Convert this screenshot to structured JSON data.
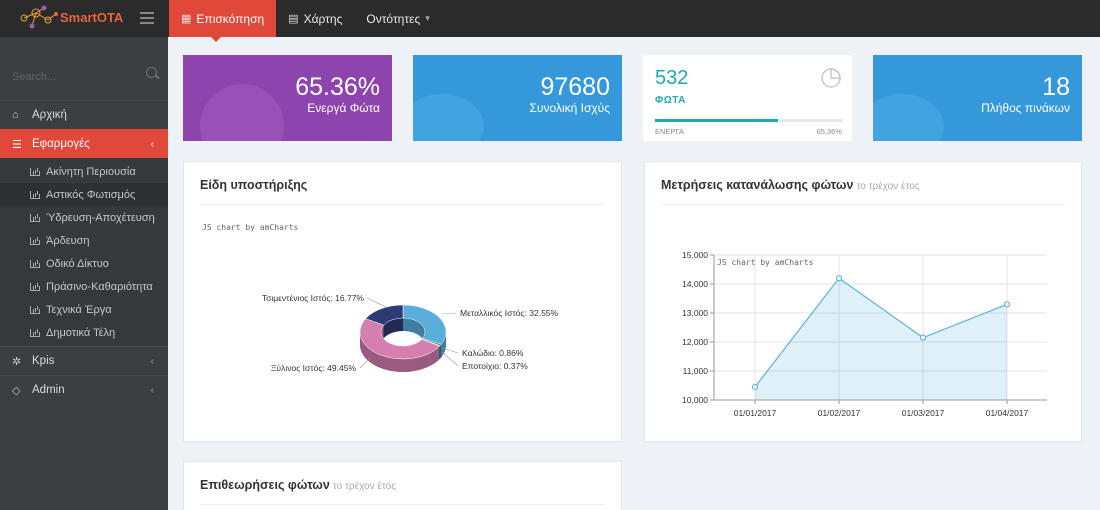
{
  "brand": {
    "name": "SmartOTA"
  },
  "topnav": {
    "items": [
      {
        "label": "Επισκόπηση",
        "icon": "dashboard-icon",
        "active": true
      },
      {
        "label": "Χάρτης",
        "icon": "map-icon"
      },
      {
        "label": "Οντότητες",
        "icon": "",
        "dropdown": true
      }
    ]
  },
  "sidebar": {
    "search_placeholder": "Search...",
    "items": [
      {
        "label": "Αρχική",
        "icon": "home-icon"
      },
      {
        "label": "Εφαρμογές",
        "icon": "database-icon",
        "active": true,
        "expanded": true
      },
      {
        "label": "Kpis",
        "icon": "gear-icon"
      },
      {
        "label": "Admin",
        "icon": "diamond-icon"
      }
    ],
    "subitems": [
      {
        "label": "Ακίνητη Περιουσία"
      },
      {
        "label": "Αστικός Φωτισμός",
        "active": true
      },
      {
        "label": "Ύδρευση-Αποχέτευση"
      },
      {
        "label": "Άρδευση"
      },
      {
        "label": "Οδικό Δίκτυο"
      },
      {
        "label": "Πράσινο-Καθαριότητα"
      },
      {
        "label": "Τεχνικά Έργα"
      },
      {
        "label": "Δημοτικά Τέλη"
      }
    ]
  },
  "stats": {
    "active_lights": {
      "value": "65.36%",
      "label": "Ενεργά Φώτα",
      "color": "#8e44ad"
    },
    "total_power": {
      "value": "97680",
      "label": "Συνολική Ισχύς",
      "color": "#3498db"
    },
    "lights": {
      "value": "532",
      "label": "ΦΩΤΑ",
      "progress_label": "ΕΝΕΡΓΑ",
      "progress_text": "65,36%",
      "progress": 0.6536,
      "color": "#1fa8b5"
    },
    "panels": {
      "value": "18",
      "label": "Πλήθος πινάκων",
      "color": "#3498db"
    }
  },
  "cards": {
    "support_types": {
      "title": "Είδη υποστήριξης",
      "credit": "JS chart by amCharts"
    },
    "consumption": {
      "title": "Μετρήσεις κατανάλωσης φώτων",
      "subtitle": "το τρέχον έτος",
      "credit": "JS chart by amCharts"
    },
    "inspections": {
      "title": "Επιθεωρήσεις φώτων",
      "subtitle": "το τρέχον έτος"
    }
  },
  "chart_data": [
    {
      "type": "pie",
      "variant": "donut-3d",
      "slices": [
        {
          "label": "Μεταλλικός Ιστός: 32.55%",
          "name": "Μεταλλικός Ιστός",
          "value": 32.55,
          "color": "#5aaedc"
        },
        {
          "label": "Καλώδιο: 0.86%",
          "name": "Καλώδιο",
          "value": 0.86,
          "color": "#2c7f88"
        },
        {
          "label": "Εποτοίχιο: 0.37%",
          "name": "Εποτοίχιο",
          "value": 0.37,
          "color": "#5b6f9e"
        },
        {
          "label": "Ξύλινος Ιστός: 49.45%",
          "name": "Ξύλινος Ιστός",
          "value": 49.45,
          "color": "#d47fb0"
        },
        {
          "label": "Τσιμεντένιος Ιστός: 16.77%",
          "name": "Τσιμεντένιος Ιστός",
          "value": 16.77,
          "color": "#2d3a73"
        }
      ]
    },
    {
      "type": "area",
      "x": [
        "01/01/2017",
        "01/02/2017",
        "01/03/2017",
        "01/04/2017"
      ],
      "values": [
        10450,
        14200,
        12150,
        13300
      ],
      "ylim": [
        10000,
        15000
      ],
      "yticks": [
        "10,000",
        "11,000",
        "12,000",
        "13,000",
        "14,000",
        "15,000"
      ],
      "grid": true,
      "color": "#5fb4dc"
    }
  ]
}
